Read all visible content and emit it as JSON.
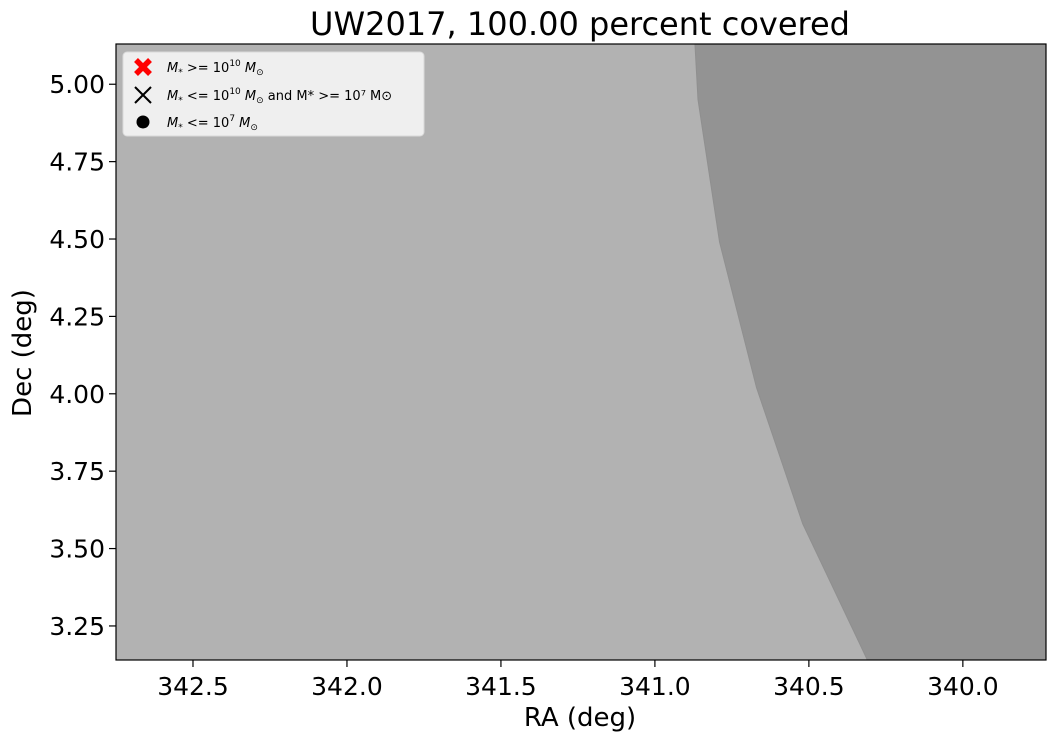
{
  "chart_data": {
    "type": "area",
    "title": "UW2017, 100.00 percent covered",
    "xlabel": "RA (deg)",
    "ylabel": "Dec (deg)",
    "xlim": [
      342.75,
      339.73
    ],
    "ylim": [
      3.14,
      5.13
    ],
    "x_inverted": true,
    "grid": false,
    "x_ticks": [
      342.5,
      342.0,
      341.5,
      341.0,
      340.5,
      340.0
    ],
    "x_tick_labels": [
      "342.5",
      "342.0",
      "341.5",
      "341.0",
      "340.5",
      "340.0"
    ],
    "y_ticks": [
      3.25,
      3.5,
      3.75,
      4.0,
      4.25,
      4.5,
      4.75,
      5.0
    ],
    "y_tick_labels": [
      "3.25",
      "3.50",
      "3.75",
      "4.00",
      "4.25",
      "4.50",
      "4.75",
      "5.00"
    ],
    "regions": [
      {
        "shade": "light",
        "color": "#b2b2b2",
        "boundary": [
          {
            "x": 340.87,
            "y": 5.13
          },
          {
            "x": 340.86,
            "y": 4.95
          },
          {
            "x": 340.79,
            "y": 4.49
          },
          {
            "x": 340.67,
            "y": 4.02
          },
          {
            "x": 340.52,
            "y": 3.58
          },
          {
            "x": 340.31,
            "y": 3.14
          }
        ]
      },
      {
        "shade": "dark",
        "color": "#939393"
      }
    ],
    "legend": {
      "placement": "upper-left",
      "entries": [
        {
          "marker": "red-x-icon",
          "color": "#ff0000",
          "label_parts": [
            "M",
            "*",
            " >= 10",
            "10",
            " M",
            "⊙",
            ""
          ]
        },
        {
          "marker": "black-x-icon",
          "color": "#000000",
          "label_parts": [
            "M",
            "*",
            " <= 10",
            "10",
            " M",
            "⊙",
            " and M* >= 10⁷ M⊙"
          ]
        },
        {
          "marker": "black-dot-icon",
          "color": "#000000",
          "label_parts": [
            "M",
            "*",
            " <= 10",
            "7",
            " M",
            "⊙",
            ""
          ]
        }
      ],
      "labels_text": [
        "M* >= 10^10 M⊙",
        "M* <= 10^10 M⊙ and M* >= 10^7 M⊙",
        "M* <= 10^7 M⊙"
      ]
    }
  }
}
